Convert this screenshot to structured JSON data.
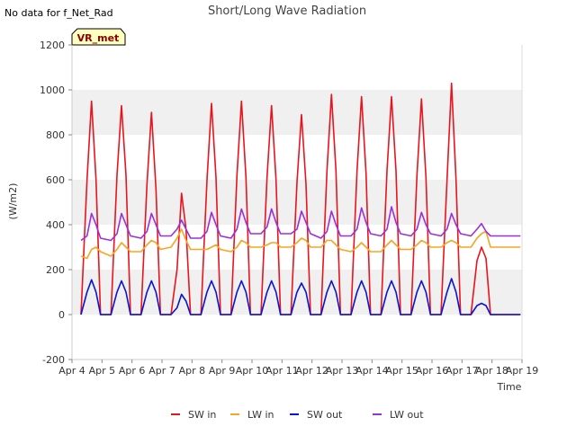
{
  "chart_data": {
    "type": "line",
    "title": "Short/Long Wave Radiation",
    "no_data_note": "No data for f_Net_Rad",
    "site_badge": "VR_met",
    "xlabel": "Time",
    "ylabel": "(W/m2)",
    "xlim": [
      4,
      19
    ],
    "ylim": [
      -200,
      1200
    ],
    "x_ticks": [
      4,
      5,
      6,
      7,
      8,
      9,
      10,
      11,
      12,
      13,
      14,
      15,
      16,
      17,
      18,
      19
    ],
    "x_tick_labels": [
      "Apr 4",
      "Apr 5",
      "Apr 6",
      "Apr 7",
      "Apr 8",
      "Apr 9",
      "Apr 10",
      "Apr 11",
      "Apr 12",
      "Apr 13",
      "Apr 14",
      "Apr 15",
      "Apr 16",
      "Apr 17",
      "Apr 18",
      "Apr 19"
    ],
    "y_ticks": [
      -200,
      0,
      200,
      400,
      600,
      800,
      1000,
      1200
    ],
    "y_tick_labels": [
      "-200",
      "0",
      "200",
      "400",
      "600",
      "800",
      "1000",
      "1200"
    ],
    "grid": "horizontal bands",
    "legend_position": "bottom-center",
    "series": [
      {
        "name": "SW in",
        "color": "#e8141e",
        "x": [
          4.3,
          4.5,
          4.65,
          4.8,
          4.95,
          5.3,
          5.5,
          5.65,
          5.8,
          5.95,
          6.3,
          6.5,
          6.65,
          6.8,
          6.95,
          7.3,
          7.5,
          7.65,
          7.8,
          7.95,
          8.3,
          8.5,
          8.65,
          8.8,
          8.95,
          9.3,
          9.5,
          9.65,
          9.8,
          9.95,
          10.3,
          10.5,
          10.65,
          10.8,
          10.95,
          11.3,
          11.5,
          11.65,
          11.8,
          11.95,
          12.3,
          12.5,
          12.65,
          12.8,
          12.95,
          13.3,
          13.5,
          13.65,
          13.8,
          13.95,
          14.3,
          14.5,
          14.65,
          14.8,
          14.95,
          15.3,
          15.5,
          15.65,
          15.8,
          15.95,
          16.3,
          16.5,
          16.65,
          16.8,
          16.95,
          17.3,
          17.5,
          17.65,
          17.8,
          17.95,
          18.3,
          18.5,
          18.65,
          18.8,
          18.95
        ],
        "y": [
          0,
          600,
          950,
          600,
          0,
          0,
          620,
          930,
          620,
          0,
          0,
          580,
          900,
          560,
          0,
          0,
          200,
          540,
          380,
          0,
          0,
          600,
          940,
          610,
          0,
          0,
          620,
          950,
          610,
          0,
          0,
          610,
          930,
          600,
          0,
          0,
          590,
          890,
          580,
          0,
          0,
          640,
          980,
          640,
          0,
          0,
          640,
          970,
          630,
          0,
          0,
          640,
          970,
          640,
          0,
          0,
          620,
          960,
          610,
          0,
          0,
          600,
          1030,
          600,
          0,
          0,
          240,
          300,
          250,
          0,
          0,
          0,
          0,
          0,
          0
        ]
      },
      {
        "name": "LW in",
        "color": "#f5a623",
        "x": [
          4.3,
          4.5,
          4.65,
          4.8,
          4.95,
          5.3,
          5.5,
          5.65,
          5.8,
          5.95,
          6.3,
          6.5,
          6.65,
          6.8,
          6.95,
          7.3,
          7.5,
          7.65,
          7.8,
          7.95,
          8.3,
          8.5,
          8.65,
          8.8,
          8.95,
          9.3,
          9.5,
          9.65,
          9.8,
          9.95,
          10.3,
          10.5,
          10.65,
          10.8,
          10.95,
          11.3,
          11.5,
          11.65,
          11.8,
          11.95,
          12.3,
          12.5,
          12.65,
          12.8,
          12.95,
          13.3,
          13.5,
          13.65,
          13.8,
          13.95,
          14.3,
          14.5,
          14.65,
          14.8,
          14.95,
          15.3,
          15.5,
          15.65,
          15.8,
          15.95,
          16.3,
          16.5,
          16.65,
          16.8,
          16.95,
          17.3,
          17.5,
          17.65,
          17.8,
          17.95,
          18.3,
          18.5,
          18.65,
          18.8,
          18.95
        ],
        "y": [
          260,
          250,
          290,
          300,
          280,
          260,
          290,
          320,
          300,
          280,
          280,
          310,
          330,
          320,
          290,
          300,
          340,
          380,
          330,
          290,
          290,
          290,
          300,
          310,
          290,
          280,
          300,
          330,
          320,
          300,
          300,
          310,
          320,
          320,
          300,
          300,
          320,
          340,
          330,
          300,
          300,
          330,
          330,
          310,
          290,
          280,
          300,
          320,
          300,
          280,
          280,
          310,
          330,
          310,
          290,
          290,
          310,
          330,
          320,
          300,
          300,
          320,
          330,
          320,
          300,
          300,
          340,
          360,
          370,
          300,
          300,
          300,
          300,
          300,
          300
        ]
      },
      {
        "name": "SW out",
        "color": "#0a14d2",
        "x": [
          4.3,
          4.5,
          4.65,
          4.8,
          4.95,
          5.3,
          5.5,
          5.65,
          5.8,
          5.95,
          6.3,
          6.5,
          6.65,
          6.8,
          6.95,
          7.3,
          7.5,
          7.65,
          7.8,
          7.95,
          8.3,
          8.5,
          8.65,
          8.8,
          8.95,
          9.3,
          9.5,
          9.65,
          9.8,
          9.95,
          10.3,
          10.5,
          10.65,
          10.8,
          10.95,
          11.3,
          11.5,
          11.65,
          11.8,
          11.95,
          12.3,
          12.5,
          12.65,
          12.8,
          12.95,
          13.3,
          13.5,
          13.65,
          13.8,
          13.95,
          14.3,
          14.5,
          14.65,
          14.8,
          14.95,
          15.3,
          15.5,
          15.65,
          15.8,
          15.95,
          16.3,
          16.5,
          16.65,
          16.8,
          16.95,
          17.3,
          17.5,
          17.65,
          17.8,
          17.95,
          18.3,
          18.5,
          18.65,
          18.8,
          18.95
        ],
        "y": [
          0,
          100,
          155,
          100,
          0,
          0,
          100,
          150,
          100,
          0,
          0,
          100,
          150,
          100,
          0,
          0,
          30,
          90,
          60,
          0,
          0,
          100,
          150,
          100,
          0,
          0,
          100,
          150,
          100,
          0,
          0,
          100,
          150,
          100,
          0,
          0,
          100,
          140,
          100,
          0,
          0,
          100,
          150,
          100,
          0,
          0,
          100,
          150,
          100,
          0,
          0,
          100,
          150,
          100,
          0,
          0,
          100,
          150,
          100,
          0,
          0,
          100,
          160,
          100,
          0,
          0,
          40,
          50,
          40,
          0,
          0,
          0,
          0,
          0,
          0
        ]
      },
      {
        "name": "LW out",
        "color": "#9b30d9",
        "x": [
          4.3,
          4.5,
          4.65,
          4.8,
          4.95,
          5.3,
          5.5,
          5.65,
          5.8,
          5.95,
          6.3,
          6.5,
          6.65,
          6.8,
          6.95,
          7.3,
          7.5,
          7.65,
          7.8,
          7.95,
          8.3,
          8.5,
          8.65,
          8.8,
          8.95,
          9.3,
          9.5,
          9.65,
          9.8,
          9.95,
          10.3,
          10.5,
          10.65,
          10.8,
          10.95,
          11.3,
          11.5,
          11.65,
          11.8,
          11.95,
          12.3,
          12.5,
          12.65,
          12.8,
          12.95,
          13.3,
          13.5,
          13.65,
          13.8,
          13.95,
          14.3,
          14.5,
          14.65,
          14.8,
          14.95,
          15.3,
          15.5,
          15.65,
          15.8,
          15.95,
          16.3,
          16.5,
          16.65,
          16.8,
          16.95,
          17.3,
          17.5,
          17.65,
          17.8,
          17.95,
          18.3,
          18.5,
          18.65,
          18.8,
          18.95
        ],
        "y": [
          330,
          350,
          450,
          400,
          340,
          330,
          360,
          450,
          400,
          350,
          340,
          370,
          450,
          400,
          350,
          350,
          380,
          420,
          380,
          340,
          340,
          370,
          455,
          400,
          350,
          340,
          380,
          470,
          410,
          360,
          360,
          390,
          470,
          410,
          360,
          360,
          380,
          460,
          410,
          360,
          340,
          370,
          460,
          400,
          350,
          350,
          380,
          475,
          410,
          360,
          350,
          380,
          480,
          410,
          360,
          350,
          380,
          455,
          400,
          360,
          350,
          380,
          450,
          400,
          360,
          350,
          380,
          405,
          370,
          350,
          350,
          350,
          350,
          350,
          350
        ]
      }
    ]
  }
}
